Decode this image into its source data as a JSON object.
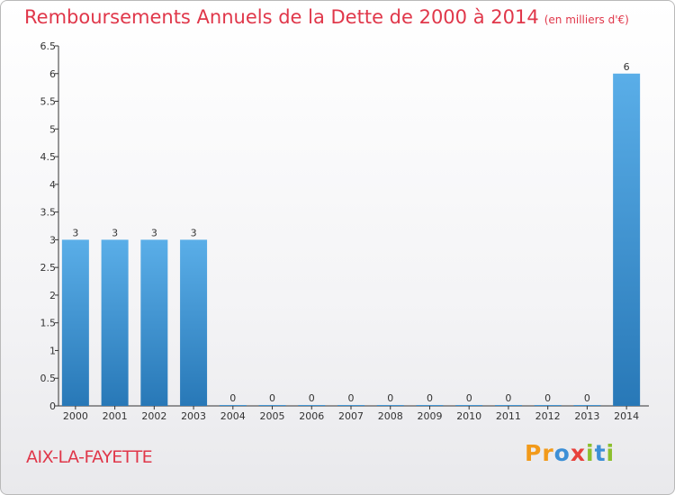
{
  "title": "Remboursements Annuels de la Dette de 2000 à 2014",
  "unit": "(en milliers d'€)",
  "commune": "AIX-LA-FAYETTE",
  "logo": {
    "letters": [
      "P",
      "r",
      "o",
      "x",
      "i",
      "t",
      "i"
    ],
    "colors": [
      "#f29a1a",
      "#f29a1a",
      "#3c8fd6",
      "#e8413c",
      "#8cbf2e",
      "#3c8fd6",
      "#8cbf2e"
    ]
  },
  "colors": {
    "bar_top": "#5aaee8",
    "bar_bottom": "#2878b7",
    "title": "#e0374a"
  },
  "chart_data": {
    "type": "bar",
    "title": "Remboursements Annuels de la Dette de 2000 à 2014",
    "xlabel": "",
    "ylabel": "",
    "categories": [
      "2000",
      "2001",
      "2002",
      "2003",
      "2004",
      "2005",
      "2006",
      "2007",
      "2008",
      "2009",
      "2010",
      "2011",
      "2012",
      "2013",
      "2014"
    ],
    "values": [
      3,
      3,
      3,
      3,
      0,
      0,
      0,
      0,
      0,
      0,
      0,
      0,
      0,
      0,
      6
    ],
    "ylim": [
      0,
      6.5
    ],
    "yticks": [
      "0",
      "0.5",
      "1",
      "1.5",
      "2",
      "2.5",
      "3",
      "3.5",
      "4",
      "4.5",
      "5",
      "5.5",
      "6",
      "6.5"
    ],
    "grid": false
  }
}
